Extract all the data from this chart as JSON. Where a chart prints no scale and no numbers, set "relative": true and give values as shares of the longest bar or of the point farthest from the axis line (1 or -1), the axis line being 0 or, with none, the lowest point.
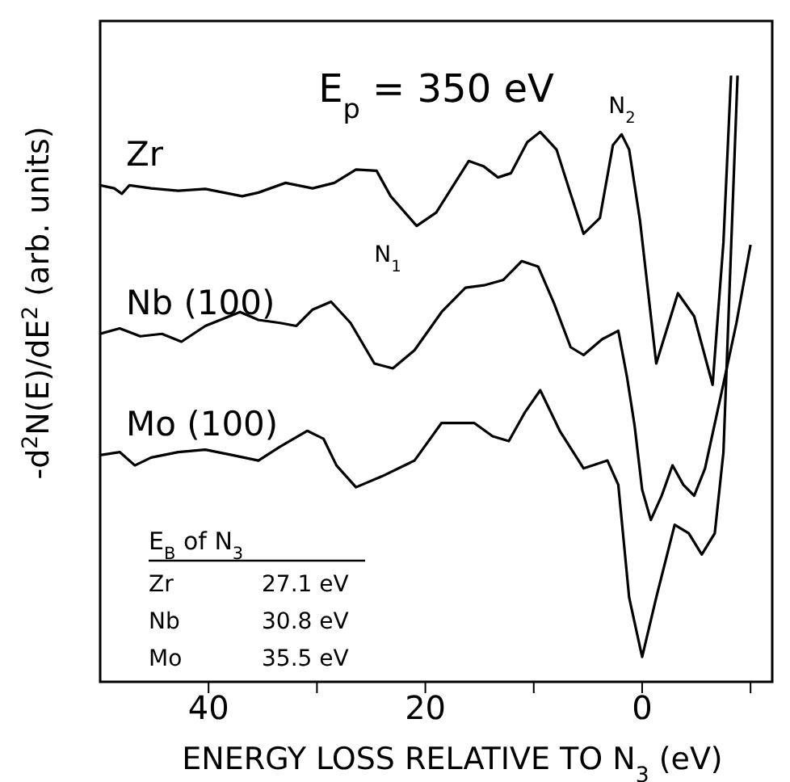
{
  "chart_data": {
    "type": "line",
    "title": "E$_{p}$ = 350 eV",
    "xlabel": "ENERGY LOSS RELATIVE TO N$_{3}$ (eV)",
    "ylabel": "-d$^{2}$N(E)/dE$^{2}$ (arb. units)",
    "relative": true,
    "xlim": [
      50,
      -12
    ],
    "xticks": [
      40,
      {
        "value": 30,
        "label": null
      },
      20,
      {
        "value": 10,
        "label": null
      },
      0,
      {
        "value": -10,
        "label": null
      }
    ],
    "legend": false,
    "grid": false,
    "marker": "none",
    "series": [
      {
        "name": "Zr",
        "color": "#000000",
        "x": [
          50.0,
          48.7,
          48.0,
          47.3,
          45.3,
          42.8,
          40.3,
          36.9,
          35.4,
          32.9,
          30.4,
          28.4,
          26.4,
          24.5,
          23.2,
          20.8,
          19.0,
          16.0,
          14.6,
          13.3,
          12.1,
          10.6,
          9.4,
          7.9,
          6.6,
          5.4,
          3.9,
          2.7,
          1.9,
          1.2,
          0.2,
          -1.3,
          -3.3,
          -4.8,
          -6.5,
          -7.5,
          -8.2
        ],
        "values": [
          0.819,
          0.814,
          0.805,
          0.819,
          0.814,
          0.81,
          0.813,
          0.801,
          0.807,
          0.823,
          0.814,
          0.823,
          0.845,
          0.843,
          0.801,
          0.752,
          0.774,
          0.859,
          0.85,
          0.832,
          0.839,
          0.89,
          0.907,
          0.878,
          0.805,
          0.739,
          0.765,
          0.885,
          0.903,
          0.878,
          0.761,
          0.525,
          0.641,
          0.603,
          0.49,
          0.725,
          1.0
        ]
      },
      {
        "name": "Nb (100)",
        "color": "#000000",
        "x": [
          50.0,
          48.2,
          46.3,
          44.3,
          42.5,
          40.3,
          37.1,
          35.4,
          33.4,
          31.9,
          30.4,
          28.7,
          26.9,
          24.7,
          23.0,
          21.0,
          18.5,
          16.3,
          14.6,
          12.8,
          11.1,
          9.6,
          8.1,
          6.6,
          5.4,
          3.7,
          2.2,
          1.4,
          0.7,
          0.0,
          -0.8,
          -1.8,
          -2.8,
          -3.8,
          -4.8,
          -5.8,
          -7.2,
          -8.7,
          -10.0
        ],
        "values": [
          0.574,
          0.583,
          0.57,
          0.574,
          0.561,
          0.587,
          0.61,
          0.597,
          0.592,
          0.587,
          0.614,
          0.627,
          0.592,
          0.525,
          0.517,
          0.547,
          0.61,
          0.65,
          0.654,
          0.663,
          0.694,
          0.685,
          0.623,
          0.552,
          0.539,
          0.565,
          0.579,
          0.503,
          0.423,
          0.317,
          0.267,
          0.307,
          0.357,
          0.325,
          0.307,
          0.352,
          0.467,
          0.592,
          0.721
        ]
      },
      {
        "name": "Mo (100)",
        "color": "#000000",
        "x": [
          50.0,
          48.2,
          46.8,
          45.3,
          42.8,
          40.3,
          37.8,
          35.4,
          33.4,
          30.9,
          29.4,
          28.2,
          26.4,
          24.0,
          21.0,
          18.5,
          15.5,
          13.8,
          12.3,
          10.8,
          9.4,
          7.6,
          5.4,
          3.2,
          2.2,
          1.2,
          0.0,
          -1.3,
          -3.0,
          -4.3,
          -5.5,
          -6.7,
          -7.5,
          -8.8
        ],
        "values": [
          0.374,
          0.379,
          0.357,
          0.37,
          0.379,
          0.383,
          0.374,
          0.365,
          0.388,
          0.414,
          0.401,
          0.357,
          0.321,
          0.339,
          0.365,
          0.427,
          0.427,
          0.405,
          0.397,
          0.445,
          0.481,
          0.414,
          0.352,
          0.365,
          0.325,
          0.139,
          0.041,
          0.139,
          0.259,
          0.245,
          0.21,
          0.245,
          0.379,
          1.0
        ]
      }
    ],
    "annotations": [
      "N$_{1}$",
      "N$_{2}$",
      "E$_{B}$ of N$_{3}$",
      "Zr",
      "27.1 eV",
      "Nb",
      "30.8 eV",
      "Mo",
      "35.5 eV"
    ]
  }
}
